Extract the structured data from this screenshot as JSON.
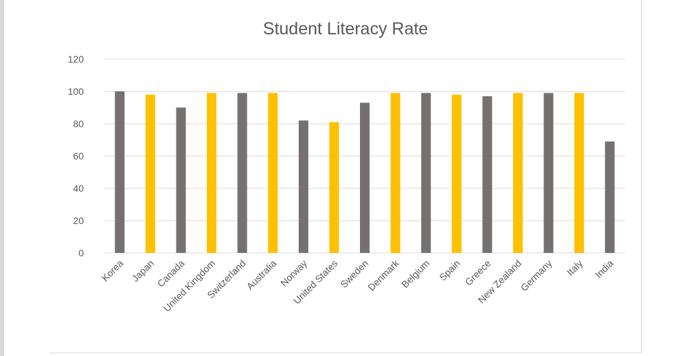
{
  "colors": {
    "gray": "#767171",
    "gold": "#ffc000",
    "grid": "#d9d9d9",
    "text": "#595959"
  },
  "chart_data": {
    "type": "bar",
    "title": "Student Literacy Rate",
    "xlabel": "",
    "ylabel": "",
    "ylim": [
      0,
      120
    ],
    "yticks": [
      0,
      20,
      40,
      60,
      80,
      100,
      120
    ],
    "grid": true,
    "legend": "none",
    "categories": [
      "Korea",
      "Japan",
      "Canada",
      "United Kingdom",
      "Switzerland",
      "Australia",
      "Norway",
      "United States",
      "Sweden",
      "Denmark",
      "Belgium",
      "Spain",
      "Greece",
      "New Zealand",
      "Germany",
      "Italy",
      "India"
    ],
    "values": [
      100,
      98,
      90,
      99,
      99,
      99,
      82,
      81,
      93,
      99,
      99,
      98,
      97,
      99,
      99,
      99,
      69
    ],
    "bar_colors": [
      "gray",
      "gold",
      "gray",
      "gold",
      "gray",
      "gold",
      "gray",
      "gold",
      "gray",
      "gold",
      "gray",
      "gold",
      "gray",
      "gold",
      "gray",
      "gold",
      "gray"
    ]
  }
}
